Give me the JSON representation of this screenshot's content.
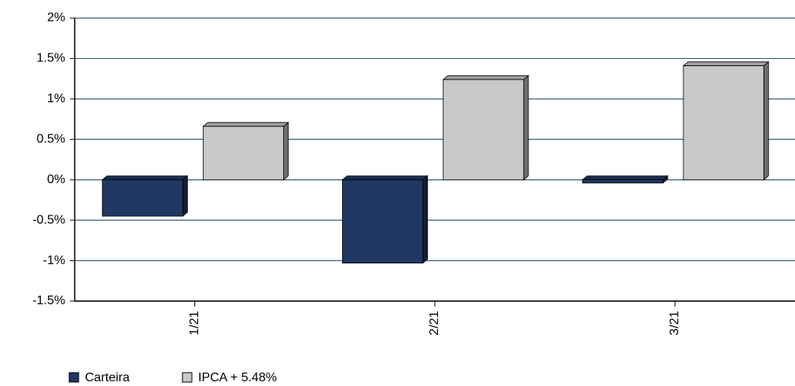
{
  "chart_data": {
    "type": "bar",
    "categories": [
      "1/21",
      "2/21",
      "3/21"
    ],
    "series": [
      {
        "name": "Carteira",
        "color": "#203864",
        "values": [
          -0.45,
          -1.03,
          -0.04
        ]
      },
      {
        "name": "IPCA + 5.48%",
        "color": "#c8c8c8",
        "values": [
          0.66,
          1.24,
          1.41
        ]
      }
    ],
    "ylim": [
      -1.5,
      2
    ],
    "yticks": [
      {
        "value": -1.5,
        "label": "-1.5%"
      },
      {
        "value": -1,
        "label": "-1%"
      },
      {
        "value": -0.5,
        "label": "-0.5%"
      },
      {
        "value": 0,
        "label": "0%"
      },
      {
        "value": 0.5,
        "label": "0.5%"
      },
      {
        "value": 1,
        "label": "1%"
      },
      {
        "value": 1.5,
        "label": "1.5%"
      },
      {
        "value": 2,
        "label": "2%"
      }
    ],
    "grid": true
  }
}
